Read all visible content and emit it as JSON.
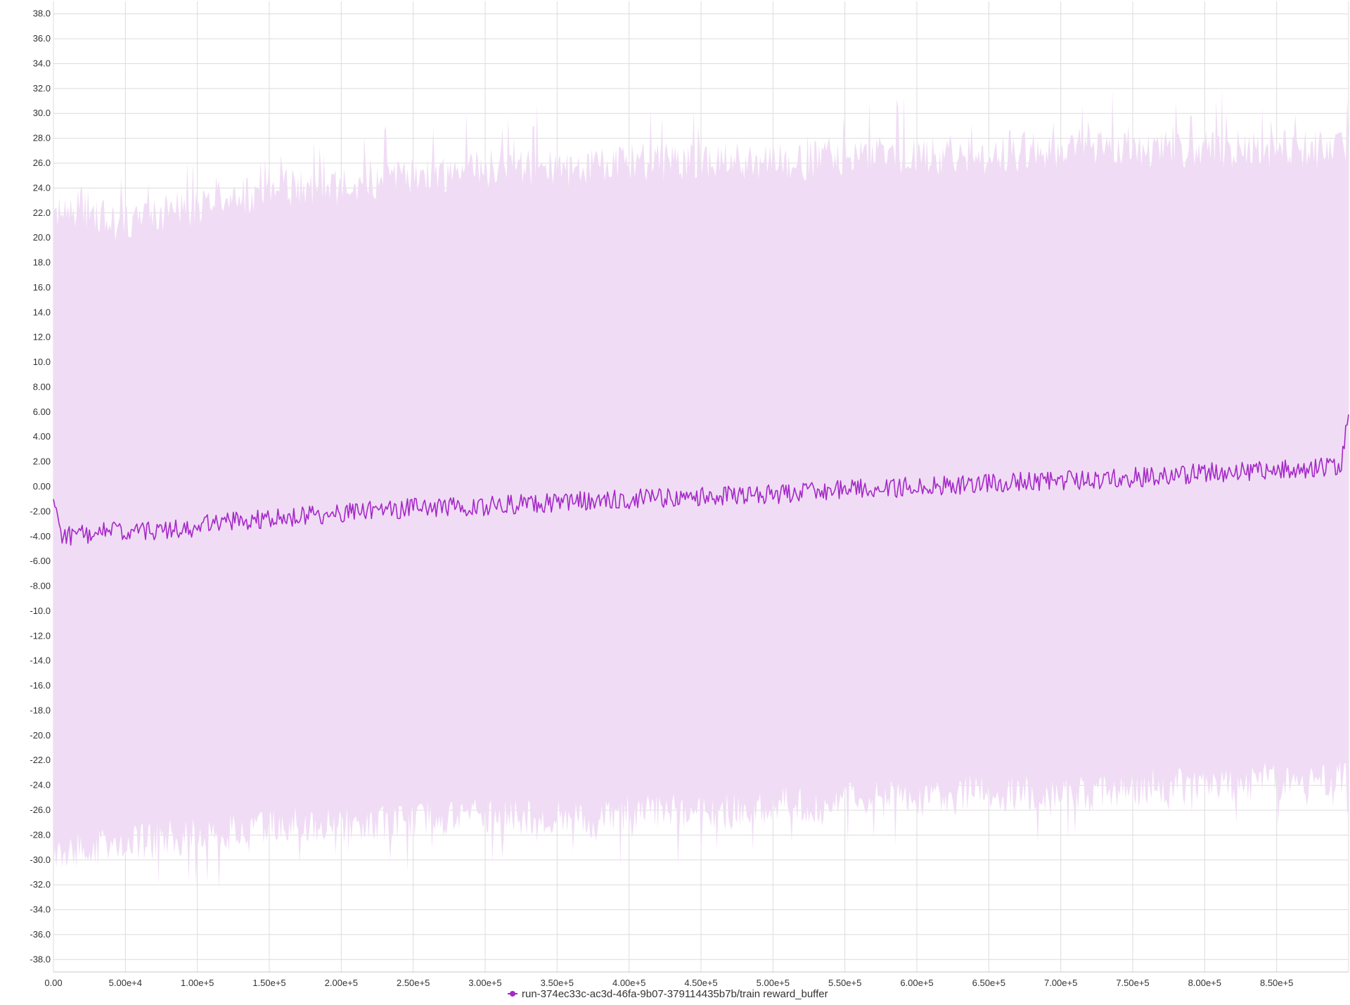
{
  "chart_data": {
    "type": "line",
    "xlim": [
      0,
      900000
    ],
    "ylim": [
      -39,
      39
    ],
    "x_ticks": [
      0,
      50000,
      100000,
      150000,
      200000,
      250000,
      300000,
      350000,
      400000,
      450000,
      500000,
      550000,
      600000,
      650000,
      700000,
      750000,
      800000,
      850000
    ],
    "x_tick_labels": [
      "0.00",
      "5.00e+4",
      "1.00e+5",
      "1.50e+5",
      "2.00e+5",
      "2.50e+5",
      "3.00e+5",
      "3.50e+5",
      "4.00e+5",
      "4.50e+5",
      "5.00e+5",
      "5.50e+5",
      "6.00e+5",
      "6.50e+5",
      "7.00e+5",
      "7.50e+5",
      "8.00e+5",
      "8.50e+5"
    ],
    "y_ticks": [
      38,
      36,
      34,
      32,
      30,
      28,
      26,
      24,
      22,
      20,
      18,
      16,
      14,
      12,
      10,
      8,
      6,
      4,
      2,
      0,
      -2,
      -4,
      -6,
      -8,
      -10,
      -12,
      -14,
      -16,
      -18,
      -20,
      -22,
      -24,
      -26,
      -28,
      -30,
      -32,
      -34,
      -36,
      -38
    ],
    "y_tick_labels": [
      "38.0",
      "36.0",
      "34.0",
      "32.0",
      "30.0",
      "28.0",
      "26.0",
      "24.0",
      "22.0",
      "20.0",
      "18.0",
      "16.0",
      "14.0",
      "12.0",
      "10.0",
      "8.00",
      "6.00",
      "4.00",
      "2.00",
      "0.00",
      "-2.00",
      "-4.00",
      "-6.00",
      "-8.00",
      "-10.0",
      "-12.0",
      "-14.0",
      "-16.0",
      "-18.0",
      "-20.0",
      "-22.0",
      "-24.0",
      "-26.0",
      "-28.0",
      "-30.0",
      "-32.0",
      "-34.0",
      "-36.0",
      "-38.0"
    ],
    "grid": true,
    "legend_position": "bottom-center",
    "series": [
      {
        "name": "run-374ec33c-ac3d-46fa-9b07-379114435b7b/train reward_buffer",
        "color": "#a528c8",
        "band_color": "#f0ddf5",
        "x": [
          0,
          5000,
          20000,
          40000,
          60000,
          80000,
          100000,
          120000,
          140000,
          160000,
          180000,
          200000,
          220000,
          240000,
          260000,
          280000,
          300000,
          320000,
          340000,
          360000,
          380000,
          400000,
          420000,
          440000,
          460000,
          480000,
          500000,
          520000,
          540000,
          560000,
          580000,
          600000,
          620000,
          640000,
          660000,
          680000,
          700000,
          720000,
          740000,
          760000,
          780000,
          800000,
          820000,
          840000,
          860000,
          880000,
          895000,
          900000
        ],
        "mean": [
          -1.0,
          -4.0,
          -3.8,
          -3.6,
          -3.7,
          -3.5,
          -3.2,
          -2.8,
          -2.6,
          -2.5,
          -2.3,
          -2.1,
          -1.9,
          -1.8,
          -1.6,
          -1.7,
          -1.6,
          -1.4,
          -1.3,
          -1.2,
          -1.1,
          -1.0,
          -0.9,
          -0.8,
          -0.8,
          -0.7,
          -0.6,
          -0.5,
          -0.3,
          -0.2,
          -0.1,
          0.0,
          0.1,
          0.2,
          0.3,
          0.4,
          0.5,
          0.6,
          0.7,
          0.8,
          0.9,
          1.1,
          1.2,
          1.3,
          1.4,
          1.5,
          1.7,
          5.8
        ],
        "upper": [
          21.0,
          21.5,
          22.0,
          20.5,
          21.0,
          21.5,
          22.0,
          22.5,
          23.0,
          23.5,
          23.5,
          23.5,
          24.0,
          24.5,
          24.5,
          24.5,
          25.0,
          25.0,
          25.0,
          25.0,
          25.5,
          25.5,
          25.5,
          25.5,
          25.5,
          25.5,
          25.5,
          25.5,
          26.0,
          26.0,
          26.0,
          26.0,
          26.0,
          26.0,
          26.0,
          26.5,
          26.5,
          26.5,
          26.5,
          26.5,
          26.5,
          26.5,
          26.5,
          26.5,
          26.5,
          26.5,
          26.5,
          26.0
        ],
        "lower": [
          -29.5,
          -29.0,
          -28.5,
          -28.0,
          -28.0,
          -27.5,
          -27.5,
          -27.0,
          -27.0,
          -26.5,
          -26.5,
          -26.5,
          -26.5,
          -26.5,
          -26.0,
          -26.0,
          -26.0,
          -26.0,
          -26.0,
          -26.0,
          -26.0,
          -25.5,
          -25.5,
          -25.5,
          -25.5,
          -25.5,
          -25.0,
          -25.0,
          -25.0,
          -24.5,
          -24.5,
          -24.5,
          -24.5,
          -24.0,
          -24.0,
          -24.0,
          -24.0,
          -24.0,
          -24.0,
          -23.5,
          -23.5,
          -23.5,
          -23.5,
          -23.0,
          -23.0,
          -23.0,
          -23.0,
          -23.0
        ]
      }
    ]
  },
  "legend": {
    "label": "run-374ec33c-ac3d-46fa-9b07-379114435b7b/train reward_buffer"
  }
}
